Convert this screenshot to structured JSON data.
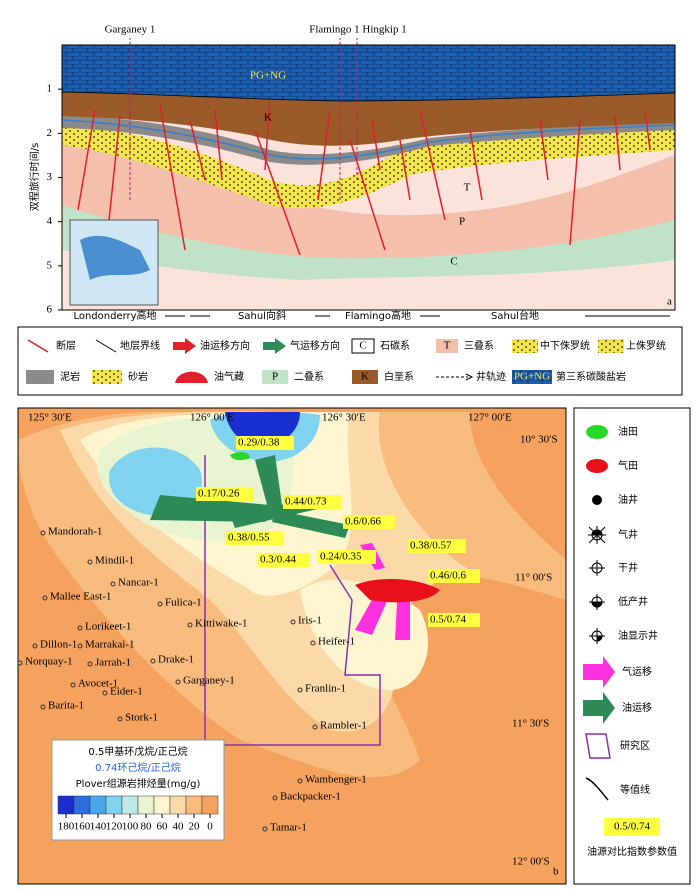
{
  "section": {
    "wells": [
      "Garganey 1",
      "Flamingo 1 Hingkip 1"
    ],
    "y_axis_title": "双程旅行时间/s",
    "ylim": [
      0,
      6
    ],
    "yticks": [
      1,
      2,
      3,
      4,
      5,
      6
    ],
    "layer_labels": [
      "PG+NG",
      "K",
      "T",
      "P",
      "C"
    ],
    "regions": [
      "Londonderry高地",
      "Sahul向斜",
      "Flamingo高地",
      "Sahul台地"
    ],
    "panel_label": "a"
  },
  "section_legend": [
    {
      "label": "断层"
    },
    {
      "label": "地层界线"
    },
    {
      "label": "油运移方向"
    },
    {
      "label": "气运移方向"
    },
    {
      "symbol": "C",
      "label": "石碳系"
    },
    {
      "symbol": "T",
      "label": "三叠系"
    },
    {
      "label": "中下侏罗统"
    },
    {
      "label": "上侏罗统"
    },
    {
      "label": "泥岩"
    },
    {
      "label": "砂岩"
    },
    {
      "label": "油气藏"
    },
    {
      "symbol": "P",
      "label": "二叠系"
    },
    {
      "symbol": "K",
      "label": "白垩系"
    },
    {
      "label": "井轨迹"
    },
    {
      "symbol": "PG+NG",
      "label": "第三系碳酸盐岩"
    }
  ],
  "map": {
    "panel_label": "b",
    "lon_labels": [
      "125° 30′E",
      "126° 00′E",
      "126° 30′E",
      "127° 00′E"
    ],
    "lat_labels": [
      "10° 30′S",
      "11° 00′S",
      "11° 30′S",
      "12° 00′S"
    ],
    "wells": [
      "Mandorah-1",
      "Mindil-1",
      "Nancar-1",
      "Mallee East-1",
      "Fulica-1",
      "Lorikeet-1",
      "Kittiwake-1",
      "Dillon-1",
      "Marrakai-1",
      "Norquay-1",
      "Jarrah-1",
      "Drake-1",
      "Avocet-1",
      "Eider-1",
      "Garganey-1",
      "Barita-1",
      "Stork-1",
      "Iris-1",
      "Heifer-1",
      "Franlin-1",
      "Rambler-1",
      "Wambenger-1",
      "Backpacker-1",
      "Tamar-1"
    ],
    "ratios": [
      "0.29/0.38",
      "0.17/0.26",
      "0.44/0.73",
      "0.38/0.55",
      "0.3/0.44",
      "0.6/0.66",
      "0.24/0.35",
      "0.38/0.57",
      "0.46/0.6",
      "0.5/0.74"
    ],
    "colorbar": {
      "line1_a": "0.5",
      "line1_b": "甲基环戊烷/正己烷",
      "line2_a": "0.74",
      "line2_b": "环己烷/正己烷",
      "title": "Plover组源岩排烃量(mg/g)",
      "ticks": [
        180,
        160,
        140,
        120,
        100,
        80,
        60,
        40,
        20,
        0
      ],
      "colors": [
        "#1a2fd0",
        "#2f6fe0",
        "#4aa8ea",
        "#7fd3ee",
        "#bfe9e6",
        "#e8f4d0",
        "#fdf5d0",
        "#fbd9a8",
        "#f8bb7e",
        "#f4a25d"
      ]
    },
    "legend": [
      "油田",
      "气田",
      "油井",
      "气井",
      "干井",
      "低产井",
      "油显示井",
      "气运移",
      "油运移",
      "研究区",
      "等值线"
    ],
    "legend_sample": "0.5/0.74",
    "legend_sample_caption": "油源对比指数参数值"
  }
}
